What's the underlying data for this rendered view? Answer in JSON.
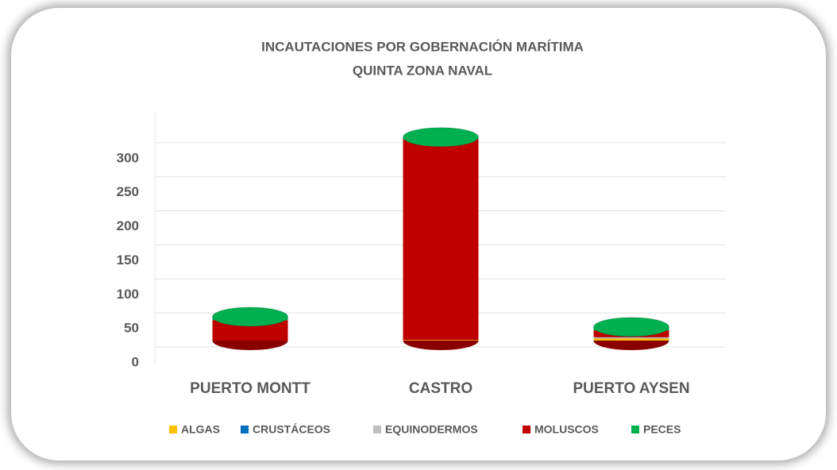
{
  "chart_data": {
    "type": "bar3d_stacked",
    "title": "INCAUTACIONES POR GOBERNACIÓN MARÍTIMA",
    "subtitle": "QUINTA ZONA NAVAL",
    "categories": [
      "PUERTO MONTT",
      "CASTRO",
      "PUERTO AYSEN"
    ],
    "series": [
      {
        "name": "ALGAS",
        "color": "#ffc000",
        "values": [
          0,
          1,
          3
        ]
      },
      {
        "name": "CRUSTÁCEOS",
        "color": "#0070c0",
        "values": [
          0,
          0,
          0
        ]
      },
      {
        "name": "EQUINODERMOS",
        "color": "#bfbfbf",
        "values": [
          0,
          0,
          2
        ]
      },
      {
        "name": "MOLUSCOS",
        "color": "#c00000",
        "values": [
          30,
          295,
          10
        ]
      },
      {
        "name": "PECES",
        "color": "#00b050",
        "values": [
          5,
          3,
          5
        ]
      }
    ],
    "ylim": [
      0,
      350
    ],
    "yticks": [
      0,
      50,
      100,
      150,
      200,
      250,
      300
    ],
    "grid": true,
    "legend": "bottom"
  }
}
